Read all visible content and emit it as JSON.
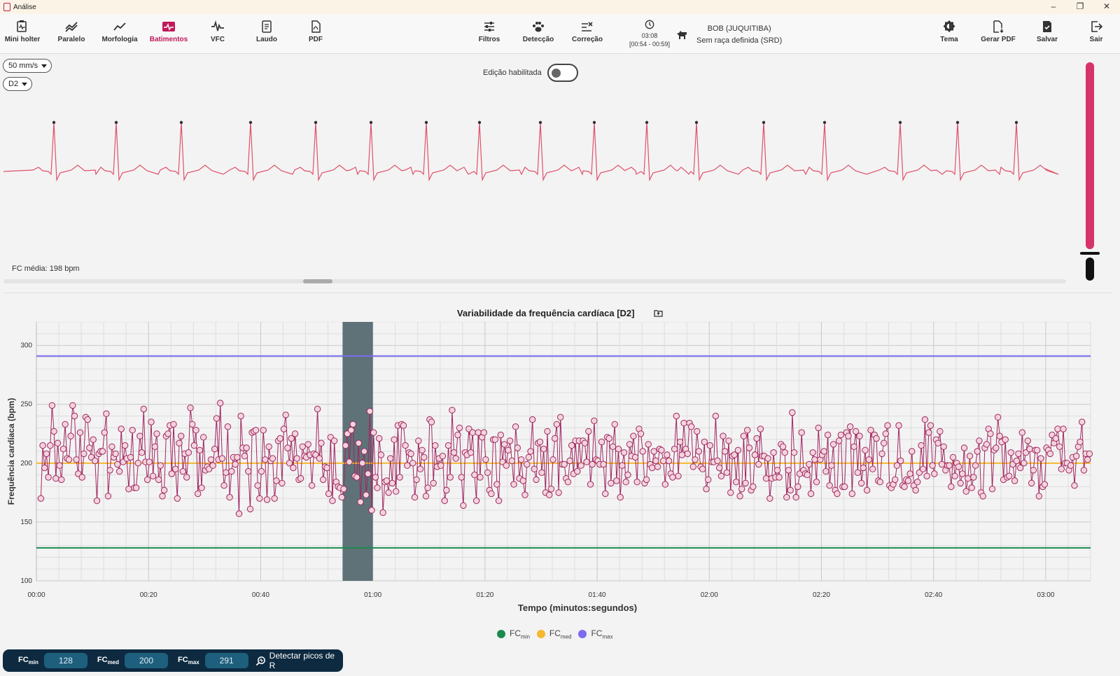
{
  "window": {
    "title": "Análise",
    "controls": [
      "–",
      "❐",
      "✕"
    ]
  },
  "toolbar": {
    "left": [
      {
        "label": "Mini holter",
        "icon": "holter-icon"
      },
      {
        "label": "Paralelo",
        "icon": "parallel-icon"
      },
      {
        "label": "Morfologia",
        "icon": "morphology-icon"
      },
      {
        "label": "Batimentos",
        "icon": "heartbeat-icon",
        "active": true
      },
      {
        "label": "VFC",
        "icon": "hrv-icon"
      },
      {
        "label": "Laudo",
        "icon": "report-icon"
      },
      {
        "label": "PDF",
        "icon": "pdf-icon"
      }
    ],
    "middle": [
      {
        "label": "Filtros",
        "icon": "filters-icon"
      },
      {
        "label": "Detecção",
        "icon": "paw-icon"
      },
      {
        "label": "Correção",
        "icon": "correction-icon"
      }
    ],
    "right": [
      {
        "label": "Tema",
        "icon": "theme-icon"
      },
      {
        "label": "Gerar PDF",
        "icon": "generate-pdf-icon"
      },
      {
        "label": "Salvar",
        "icon": "save-icon"
      },
      {
        "label": "Sair",
        "icon": "exit-icon"
      }
    ],
    "timer": {
      "time": "03:08",
      "range": "[00:54 - 00:59]"
    },
    "patient": {
      "name": "BOB (JUQUITIBA)",
      "breed": "Sem raça definida (SRD)"
    }
  },
  "ecg": {
    "speed": "50 mm/s",
    "lead": "D2",
    "edit_label": "Edição habilitada",
    "edit_enabled": false,
    "fc_media": "FC média: 198 bpm",
    "gain_level": 0.87,
    "scroll_position": 0.29,
    "color": "#e0506a"
  },
  "chart_data": {
    "type": "line",
    "title": "Variabilidade da frequência cardíaca [D2]",
    "xlabel": "Tempo (minutos:segundos)",
    "ylabel": "Frequência cardíaca (bpm)",
    "x_range_seconds": [
      0,
      188
    ],
    "ylim": [
      100,
      320
    ],
    "yticks": [
      100,
      150,
      200,
      250,
      300
    ],
    "xticks": [
      "00:00",
      "00:20",
      "00:40",
      "01:00",
      "01:20",
      "01:40",
      "02:00",
      "02:20",
      "02:40",
      "03:00"
    ],
    "xtick_seconds": [
      0,
      20,
      40,
      60,
      80,
      100,
      120,
      140,
      160,
      180
    ],
    "selection_seconds": [
      54.6,
      60
    ],
    "grid": true,
    "series_color": "#a02660",
    "marker_fill": "#f3d4dc",
    "y_values": [
      170,
      215,
      196,
      208,
      188,
      215,
      249,
      227,
      187,
      217,
      198,
      186,
      212,
      233,
      204,
      203,
      223,
      249,
      240,
      203,
      191,
      226,
      188,
      208,
      239,
      237,
      213,
      205,
      220,
      202,
      168,
      208,
      210,
      210,
      226,
      242,
      172,
      194,
      214,
      205,
      208,
      199,
      193,
      229,
      201,
      215,
      204,
      178,
      205,
      228,
      179,
      179,
      200,
      223,
      209,
      246,
      201,
      186,
      201,
      235,
      189,
      214,
      225,
      186,
      198,
      172,
      177,
      223,
      225,
      232,
      191,
      233,
      195,
      170,
      217,
      223,
      193,
      208,
      188,
      209,
      247,
      233,
      215,
      228,
      174,
      211,
      179,
      222,
      194,
      197,
      195,
      203,
      198,
      212,
      238,
      203,
      251,
      204,
      181,
      192,
      231,
      171,
      193,
      205,
      199,
      205,
      157,
      240,
      213,
      206,
      213,
      193,
      161,
      226,
      227,
      228,
      181,
      170,
      193,
      228,
      203,
      169,
      214,
      202,
      204,
      170,
      185,
      219,
      221,
      183,
      229,
      241,
      213,
      200,
      221,
      196,
      225,
      204,
      186,
      187,
      214,
      206,
      205,
      216,
      207,
      181,
      208,
      207,
      246,
      204,
      217,
      186,
      197,
      196,
      174,
      222,
      168,
      219,
      184,
      180,
      179,
      171,
      178,
      215,
      225,
      201,
      228,
      233,
      189,
      188,
      217,
      167,
      200,
      210,
      173,
      191,
      244,
      160,
      226,
      188,
      179,
      221,
      207,
      158,
      184,
      185,
      175,
      204,
      183,
      220,
      176,
      232,
      188,
      233,
      232,
      215,
      198,
      209,
      208,
      200,
      171,
      186,
      219,
      195,
      211,
      205,
      172,
      179,
      237,
      235,
      183,
      215,
      197,
      204,
      198,
      206,
      168,
      177,
      215,
      188,
      245,
      209,
      204,
      224,
      230,
      188,
      164,
      209,
      207,
      229,
      209,
      226,
      190,
      168,
      226,
      188,
      222,
      226,
      203,
      192,
      177,
      174,
      220,
      220,
      182,
      168,
      224,
      201,
      216,
      198,
      211,
      219,
      202,
      182,
      231,
      213,
      187,
      203,
      185,
      173,
      199,
      205,
      210,
      237,
      195,
      186,
      217,
      218,
      192,
      212,
      175,
      227,
      173,
      178,
      203,
      221,
      233,
      175,
      239,
      199,
      199,
      187,
      184,
      202,
      215,
      191,
      219,
      193,
      219,
      198,
      219,
      217,
      201,
      227,
      182,
      199,
      236,
      203,
      202,
      199,
      218,
      199,
      174,
      222,
      221,
      183,
      214,
      233,
      185,
      212,
      171,
      198,
      209,
      184,
      190,
      216,
      206,
      223,
      205,
      184,
      229,
      225,
      210,
      183,
      186,
      216,
      199,
      196,
      210,
      202,
      197,
      212,
      211,
      202,
      182,
      207,
      202,
      191,
      188,
      212,
      240,
      189,
      218,
      207,
      234,
      212,
      208,
      234,
      231,
      197,
      203,
      227,
      210,
      197,
      195,
      218,
      178,
      186,
      215,
      201,
      201,
      240,
      202,
      196,
      189,
      223,
      210,
      192,
      219,
      175,
      206,
      207,
      184,
      211,
      172,
      178,
      223,
      183,
      228,
      213,
      177,
      180,
      207,
      221,
      199,
      229,
      206,
      206,
      187,
      204,
      170,
      187,
      209,
      188,
      194,
      188,
      216,
      214,
      209,
      171,
      194,
      177,
      243,
      209,
      171,
      180,
      191,
      226,
      194,
      191,
      190,
      199,
      174,
      209,
      203,
      184,
      230,
      203,
      207,
      210,
      193,
      224,
      181,
      198,
      216,
      177,
      174,
      219,
      224,
      180,
      180,
      226,
      223,
      231,
      174,
      214,
      227,
      192,
      223,
      183,
      196,
      211,
      177,
      203,
      228,
      195,
      224,
      221,
      185,
      184,
      208,
      217,
      225,
      232,
      181,
      179,
      182,
      186,
      198,
      232,
      202,
      181,
      180,
      186,
      185,
      191,
      210,
      181,
      177,
      184,
      192,
      215,
      195,
      237,
      189,
      226,
      232,
      198,
      191,
      220,
      217,
      227,
      199,
      214,
      194,
      198,
      198,
      180,
      205,
      189,
      200,
      197,
      183,
      191,
      213,
      176,
      187,
      206,
      179,
      188,
      198,
      210,
      219,
      175,
      172,
      213,
      216,
      229,
      225,
      178,
      211,
      213,
      239,
      223,
      218,
      186,
      220,
      188,
      189,
      209,
      199,
      185,
      202,
      208,
      196,
      226,
      200,
      209,
      219,
      212,
      183,
      194,
      211,
      211,
      172,
      204,
      180,
      182,
      213,
      211,
      208,
      224,
      217,
      221,
      229,
      214,
      195,
      229,
      200,
      200,
      194,
      198,
      205,
      181,
      206,
      214,
      218,
      235,
      194,
      208,
      203,
      208
    ],
    "reference_lines": [
      {
        "name": "FCmin",
        "value": 128,
        "color": "#1b8a4f"
      },
      {
        "name": "FCmed",
        "value": 200,
        "color": "#f5b82e"
      },
      {
        "name": "FCmax",
        "value": 291,
        "color": "#7b6cf0"
      }
    ]
  },
  "legend": [
    {
      "base": "FC",
      "sub": "min",
      "color": "#1b8a4f"
    },
    {
      "base": "FC",
      "sub": "med",
      "color": "#f5b82e"
    },
    {
      "base": "FC",
      "sub": "max",
      "color": "#7b6cf0"
    }
  ],
  "bottom_bar": {
    "fc_label": "FC",
    "min_sub": "min",
    "min_value": "128",
    "med_sub": "med",
    "med_value": "200",
    "max_sub": "max",
    "max_value": "291",
    "detect_label": "Detectar picos de R"
  }
}
